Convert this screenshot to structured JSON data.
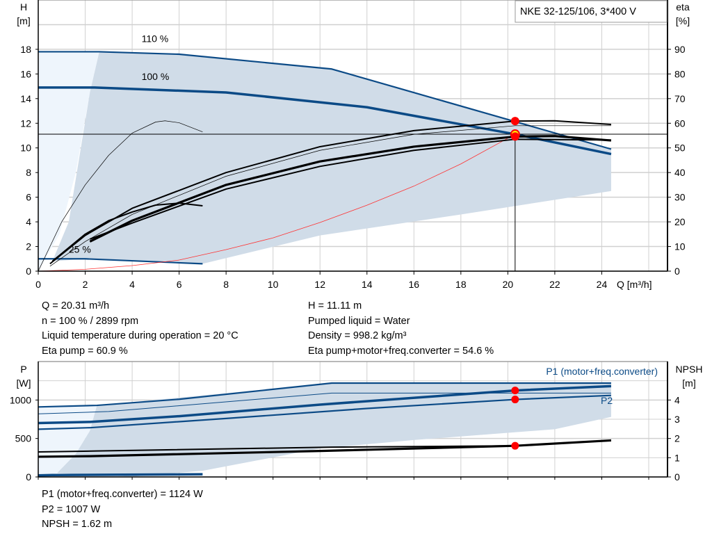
{
  "title": "NKE 32-125/106, 3*400 V",
  "colors": {
    "curve": "#0b4a86",
    "band": "#d0dce8",
    "band_light": "#eef5fc",
    "system": "#ff3030",
    "point": "#ff0000",
    "point_inner": "#ffee00",
    "grid": "#d0d0d0"
  },
  "chart_data": [
    {
      "type": "line",
      "xlabel": "Q [m³/h]",
      "ylabel_left": [
        "H",
        "[m]"
      ],
      "ylabel_right": [
        "eta",
        "[%]"
      ],
      "xlim": [
        0,
        26.8
      ],
      "ylim_left": [
        0,
        22
      ],
      "ylim_right": [
        0,
        110
      ],
      "grid": true,
      "xticks": [
        0,
        2,
        4,
        6,
        8,
        10,
        12,
        14,
        16,
        18,
        20,
        22,
        24
      ],
      "yticks_left": [
        0,
        2,
        4,
        6,
        8,
        10,
        12,
        14,
        16,
        18
      ],
      "yticks_right": [
        0,
        10,
        20,
        30,
        40,
        50,
        60,
        70,
        80,
        90
      ],
      "annotations": [
        {
          "text": "110 %",
          "q": 4.4,
          "h": 18.6
        },
        {
          "text": "100 %",
          "q": 4.4,
          "h": 15.5
        },
        {
          "text": "25 %",
          "q": 1.3,
          "h": 1.5
        }
      ],
      "bands": [
        {
          "name": "light",
          "axis": "H",
          "points": [
            [
              0,
              0
            ],
            [
              0,
              17.8
            ],
            [
              2.6,
              17.8
            ],
            [
              2.2,
              14.5
            ],
            [
              1.6,
              8
            ],
            [
              0.9,
              3
            ],
            [
              0,
              0
            ]
          ]
        },
        {
          "name": "range",
          "axis": "H",
          "points": [
            [
              2.6,
              17.8
            ],
            [
              6,
              17.6
            ],
            [
              12.5,
              16.4
            ],
            [
              24.4,
              9.9
            ],
            [
              24.4,
              6.5
            ],
            [
              18,
              4.6
            ],
            [
              12,
              2.9
            ],
            [
              7,
              0.6
            ],
            [
              2,
              1.0
            ],
            [
              0.6,
              0.8
            ],
            [
              1.3,
              4
            ],
            [
              2.2,
              14.5
            ]
          ]
        }
      ],
      "series": [
        {
          "name": "H 110 %",
          "axis": "H",
          "style": "blue",
          "points": [
            [
              0,
              17.8
            ],
            [
              2.6,
              17.8
            ],
            [
              6,
              17.6
            ],
            [
              12.5,
              16.4
            ],
            [
              24.4,
              9.9
            ]
          ]
        },
        {
          "name": "H 100 %",
          "axis": "H",
          "style": "blue-thick",
          "points": [
            [
              0,
              14.9
            ],
            [
              2.4,
              14.9
            ],
            [
              8,
              14.5
            ],
            [
              14,
              13.3
            ],
            [
              20.31,
              11.11
            ],
            [
              24.4,
              9.5
            ]
          ]
        },
        {
          "name": "H 25 %",
          "axis": "H",
          "style": "blue",
          "points": [
            [
              0,
              1.0
            ],
            [
              2,
              1.0
            ],
            [
              7,
              0.6
            ]
          ]
        },
        {
          "name": "system",
          "axis": "H",
          "style": "red",
          "points": [
            [
              0,
              0
            ],
            [
              2,
              0.15
            ],
            [
              4,
              0.45
            ],
            [
              6,
              0.9
            ],
            [
              8,
              1.75
            ],
            [
              10,
              2.7
            ],
            [
              12,
              3.95
            ],
            [
              14,
              5.35
            ],
            [
              16,
              6.9
            ],
            [
              18,
              8.7
            ],
            [
              20.31,
              11.11
            ]
          ]
        },
        {
          "name": "eta low",
          "axis": "eta",
          "style": "thin",
          "points": [
            [
              0,
              0
            ],
            [
              1,
              20
            ],
            [
              2,
              35
            ],
            [
              3,
              47
            ],
            [
              4,
              56
            ],
            [
              5,
              60.5
            ],
            [
              5.4,
              61
            ],
            [
              6,
              60.2
            ],
            [
              7,
              56.5
            ]
          ]
        },
        {
          "name": "eta low2",
          "axis": "eta",
          "style": "black",
          "points": [
            [
              0.6,
              4
            ],
            [
              2,
              15
            ],
            [
              3,
              20.5
            ],
            [
              4,
              24
            ],
            [
              5,
              26.8
            ],
            [
              6,
              27.6
            ],
            [
              7,
              26.5
            ]
          ]
        },
        {
          "name": "eta pump",
          "axis": "eta",
          "style": "black",
          "points": [
            [
              0.5,
              3
            ],
            [
              2,
              14.5
            ],
            [
              4,
              25.5
            ],
            [
              8,
              40
            ],
            [
              12,
              50.5
            ],
            [
              16,
              57
            ],
            [
              20.31,
              60.9
            ],
            [
              22,
              61
            ],
            [
              24.4,
              59.5
            ]
          ]
        },
        {
          "name": "eta pump 100 thin",
          "axis": "eta",
          "style": "thin",
          "points": [
            [
              0.5,
              2
            ],
            [
              2,
              12
            ],
            [
              4,
              23
            ],
            [
              8,
              38.5
            ],
            [
              12,
              49
            ],
            [
              16,
              55.5
            ],
            [
              20.31,
              59
            ],
            [
              24.4,
              59
            ]
          ]
        },
        {
          "name": "eta total",
          "axis": "eta",
          "style": "black-thick",
          "points": [
            [
              2.2,
              12
            ],
            [
              4,
              20.5
            ],
            [
              8,
              35
            ],
            [
              12,
              44.5
            ],
            [
              16,
              50.5
            ],
            [
              20.31,
              54.6
            ],
            [
              22,
              54.8
            ],
            [
              24.4,
              53
            ]
          ]
        },
        {
          "name": "eta total low",
          "axis": "eta",
          "style": "black",
          "points": [
            [
              2.2,
              13
            ],
            [
              4,
              19.5
            ],
            [
              8,
              33.3
            ],
            [
              12,
              42.5
            ],
            [
              16,
              49
            ],
            [
              20.31,
              53.5
            ],
            [
              24.4,
              53.2
            ]
          ]
        }
      ],
      "duty_point": {
        "q": 20.31,
        "h": 11.11,
        "eta_pump": 60.9,
        "eta_total": 54.6
      }
    },
    {
      "type": "line",
      "ylabel_left": [
        "P",
        "[W]"
      ],
      "ylabel_right": [
        "NPSH",
        "[m]"
      ],
      "xlim": [
        0,
        26.8
      ],
      "ylim_left": [
        0,
        1500
      ],
      "ylim_right": [
        0,
        6
      ],
      "grid": true,
      "yticks_left": [
        0,
        500,
        1000
      ],
      "yticks_right": [
        0,
        1,
        2,
        3,
        4
      ],
      "legend": [
        "P1 (motor+freq.converter)",
        "P2"
      ],
      "bands": [
        {
          "name": "light",
          "axis": "P",
          "points": [
            [
              0,
              0
            ],
            [
              0,
              910
            ],
            [
              2.5,
              930
            ],
            [
              2.2,
              600
            ],
            [
              1.6,
              300
            ],
            [
              0.8,
              50
            ],
            [
              0,
              0
            ]
          ]
        },
        {
          "name": "range",
          "axis": "P",
          "points": [
            [
              2.5,
              930
            ],
            [
              12.5,
              1220
            ],
            [
              24.4,
              1220
            ],
            [
              24.4,
              780
            ],
            [
              22,
              620
            ],
            [
              16,
              480
            ],
            [
              12,
              370
            ],
            [
              7,
              80
            ],
            [
              4,
              5
            ],
            [
              0.8,
              50
            ],
            [
              1.6,
              300
            ],
            [
              2.2,
              600
            ]
          ]
        }
      ],
      "series": [
        {
          "name": "P1 110 %",
          "axis": "P",
          "style": "blue",
          "points": [
            [
              0,
              910
            ],
            [
              2.5,
              930
            ],
            [
              6,
              1010
            ],
            [
              12.5,
              1220
            ],
            [
              24.4,
              1220
            ]
          ]
        },
        {
          "name": "P2 110 %",
          "axis": "P",
          "style": "thin-blue",
          "points": [
            [
              0,
              820
            ],
            [
              3,
              850
            ],
            [
              12.5,
              1090
            ],
            [
              24.4,
              1090
            ]
          ]
        },
        {
          "name": "P1 (motor+freq.converter)",
          "axis": "P",
          "style": "blue-thick",
          "points": [
            [
              0,
              700
            ],
            [
              2.2,
              715
            ],
            [
              6,
              790
            ],
            [
              12,
              940
            ],
            [
              20.31,
              1124
            ],
            [
              24.4,
              1180
            ]
          ]
        },
        {
          "name": "P2",
          "axis": "P",
          "style": "blue",
          "points": [
            [
              0,
              620
            ],
            [
              2.2,
              640
            ],
            [
              8,
              760
            ],
            [
              14,
              890
            ],
            [
              20.31,
              1007
            ],
            [
              24.4,
              1060
            ]
          ]
        },
        {
          "name": "P 25 %",
          "axis": "P",
          "style": "blue-thick",
          "points": [
            [
              0,
              20
            ],
            [
              0.6,
              25
            ],
            [
              7,
              35
            ]
          ]
        },
        {
          "name": "NPSH upper",
          "axis": "NPSH",
          "style": "black",
          "points": [
            [
              0,
              1.3
            ],
            [
              2.5,
              1.35
            ],
            [
              12.5,
              1.55
            ],
            [
              20.31,
              1.62
            ],
            [
              24.4,
              1.9
            ]
          ]
        },
        {
          "name": "NPSH",
          "axis": "NPSH",
          "style": "black-thick",
          "points": [
            [
              0,
              1.05
            ],
            [
              2.2,
              1.08
            ],
            [
              12,
              1.35
            ],
            [
              20.31,
              1.62
            ],
            [
              24.4,
              1.9
            ]
          ]
        }
      ],
      "duty_point": {
        "q": 20.31,
        "p1": 1124,
        "p2": 1007,
        "npsh": 1.62
      }
    }
  ],
  "readouts": {
    "q": "Q = 20.31 m³/h",
    "n": "n = 100 % / 2899 rpm",
    "temp": "Liquid temperature during operation = 20 °C",
    "eta_pump": "Eta pump = 60.9 %",
    "h": "H = 11.11 m",
    "liquid": "Pumped liquid = Water",
    "density": "Density = 998.2 kg/m³",
    "eta_total": "Eta pump+motor+freq.converter = 54.6 %",
    "p1": "P1 (motor+freq.converter) = 1124 W",
    "p2": "P2 = 1007 W",
    "npsh": "NPSH = 1.62 m"
  }
}
